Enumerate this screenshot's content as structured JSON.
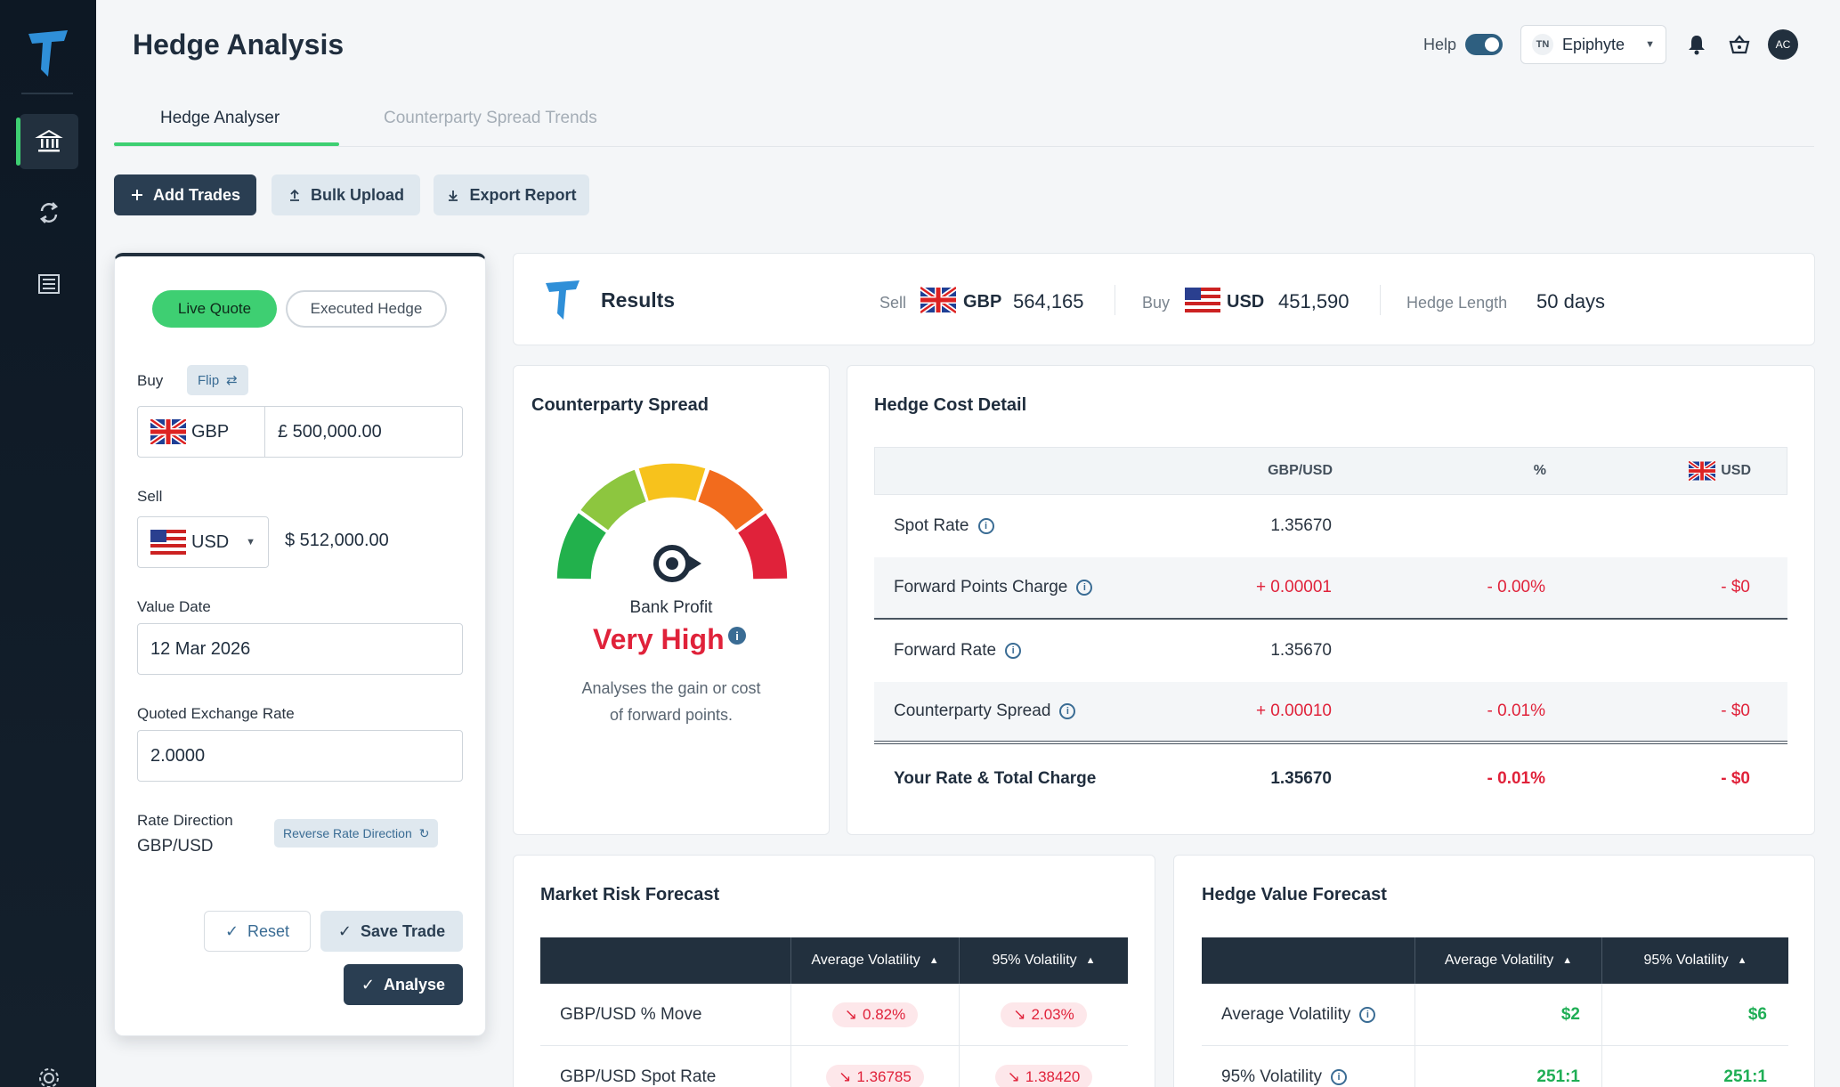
{
  "header": {
    "title": "Hedge Analysis",
    "help_label": "Help",
    "tenant_initials": "TN",
    "tenant_name": "Epiphyte",
    "avatar_initials": "AC"
  },
  "tabs": [
    {
      "label": "Hedge Analyser",
      "active": true
    },
    {
      "label": "Counterparty Spread Trends",
      "active": false
    }
  ],
  "actions": {
    "add_trades": "Add Trades",
    "bulk_upload": "Bulk Upload",
    "export_report": "Export Report"
  },
  "form": {
    "live_quote": "Live Quote",
    "executed_hedge": "Executed Hedge",
    "buy_label": "Buy",
    "flip_label": "Flip",
    "buy_currency": "GBP",
    "buy_amount": "£ 500,000.00",
    "sell_label": "Sell",
    "sell_currency": "USD",
    "sell_amount": "$ 512,000.00",
    "value_date_label": "Value Date",
    "value_date": "12 Mar 2026",
    "quoted_rate_label": "Quoted Exchange Rate",
    "quoted_rate": "2.0000",
    "rate_direction_label": "Rate Direction",
    "rate_direction": "GBP/USD",
    "reverse_label": "Reverse Rate Direction",
    "reset": "Reset",
    "save_trade": "Save Trade",
    "analyse": "Analyse"
  },
  "results": {
    "title": "Results",
    "sell_label": "Sell",
    "sell_currency": "GBP",
    "sell_amount": "564,165",
    "buy_label": "Buy",
    "buy_currency": "USD",
    "buy_amount": "451,590",
    "hedge_length_label": "Hedge Length",
    "hedge_length": "50 days"
  },
  "counterparty_spread": {
    "title": "Counterparty Spread",
    "label": "Bank Profit",
    "level": "Very High",
    "desc_line1": "Analyses the gain or cost",
    "desc_line2": "of forward points."
  },
  "hedge_cost": {
    "title": "Hedge Cost Detail",
    "headers": [
      "",
      "GBP/USD",
      "%",
      "USD"
    ],
    "rows": [
      {
        "label": "Spot Rate",
        "rate": "1.35670",
        "pct": "",
        "usd": ""
      },
      {
        "label": "Forward Points Charge",
        "rate": "+ 0.00001",
        "pct": "- 0.00%",
        "usd": "- $0"
      },
      {
        "label": "Forward Rate",
        "rate": "1.35670",
        "pct": "",
        "usd": ""
      },
      {
        "label": "Counterparty Spread",
        "rate": "+ 0.00010",
        "pct": "- 0.01%",
        "usd": "- $0"
      },
      {
        "label": "Your Rate & Total Charge",
        "rate": "1.35670",
        "pct": "- 0.01%",
        "usd": "- $0"
      }
    ]
  },
  "market_risk": {
    "title": "Market Risk Forecast",
    "headers": [
      "",
      "Average Volatility",
      "95% Volatility"
    ],
    "rows": [
      {
        "label": "GBP/USD % Move",
        "avg": "0.82%",
        "p95": "2.03%"
      },
      {
        "label": "GBP/USD Spot Rate",
        "avg": "1.36785",
        "p95": "1.38420"
      }
    ]
  },
  "hedge_value": {
    "title": "Hedge Value Forecast",
    "headers": [
      "",
      "Average Volatility",
      "95% Volatility"
    ],
    "rows": [
      {
        "label": "Average Volatility",
        "avg": "$2",
        "p95": "$6"
      },
      {
        "label": "95% Volatility",
        "avg": "251:1",
        "p95": "251:1"
      }
    ]
  },
  "colors": {
    "accent_green": "#3ecf72",
    "dark_navy": "#22303e",
    "alert_red": "#e0223a",
    "positive_green": "#1fae55"
  }
}
